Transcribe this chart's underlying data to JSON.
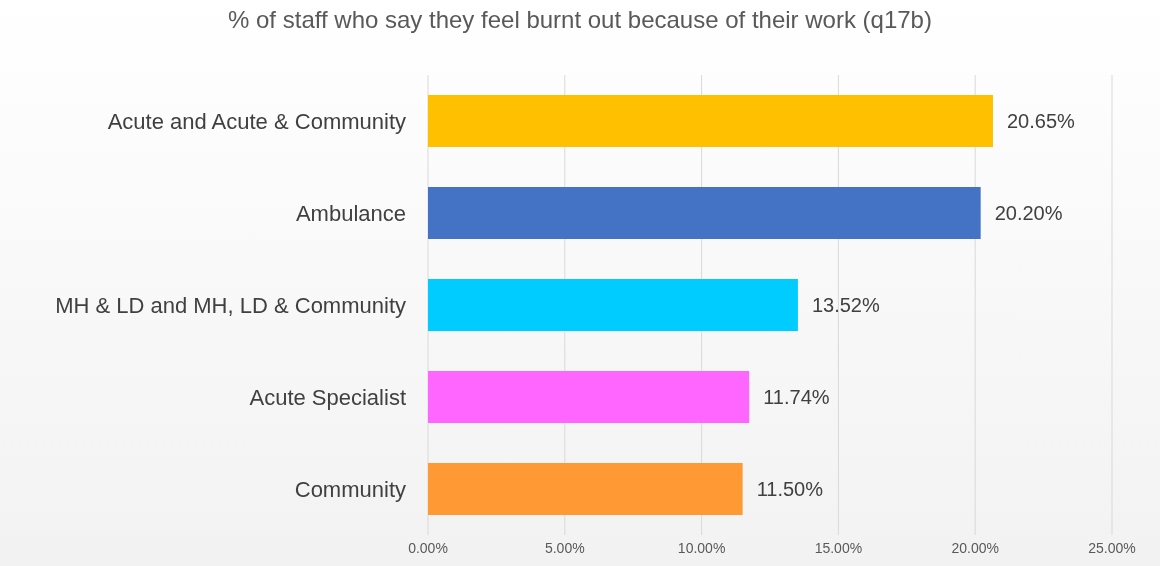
{
  "chart_data": {
    "type": "bar",
    "orientation": "horizontal",
    "title": "% of staff who say they feel burnt out because of their work (q17b)",
    "categories": [
      "Acute and Acute & Community",
      "Ambulance",
      "MH & LD and MH, LD & Community",
      "Acute Specialist",
      "Community"
    ],
    "values": [
      20.65,
      20.2,
      13.52,
      11.74,
      11.5
    ],
    "colors": [
      "#ffc000",
      "#4472c4",
      "#00ccff",
      "#ff66ff",
      "#ff9933"
    ],
    "value_labels": [
      "20.65%",
      "20.20%",
      "13.52%",
      "11.74%",
      "11.50%"
    ],
    "xlim": [
      0,
      25
    ],
    "xticks": [
      {
        "value": 0,
        "label": "0.00%"
      },
      {
        "value": 5,
        "label": "5.00%"
      },
      {
        "value": 10,
        "label": "10.00%"
      },
      {
        "value": 15,
        "label": "15.00%"
      },
      {
        "value": 20,
        "label": "20.00%"
      },
      {
        "value": 25,
        "label": "25.00%"
      }
    ],
    "grid": "x"
  }
}
